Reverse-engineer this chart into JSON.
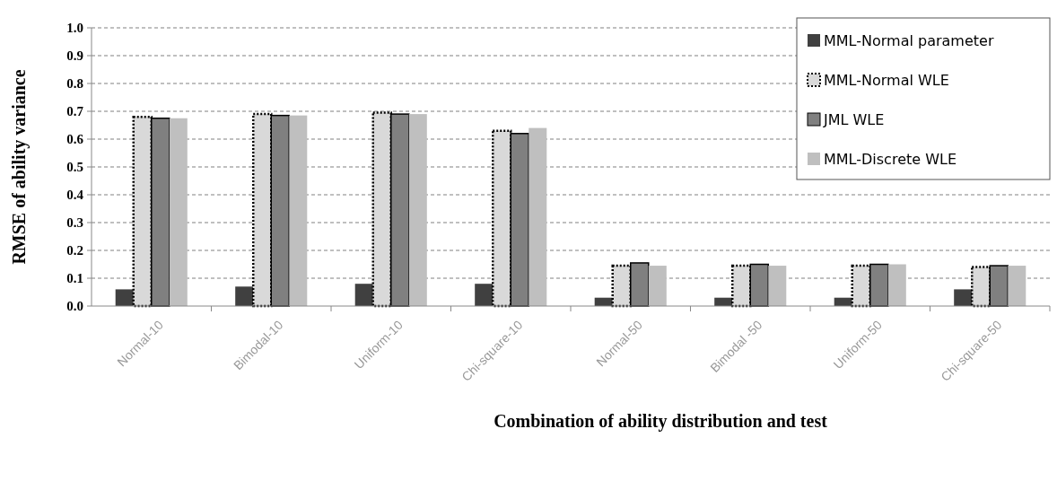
{
  "chart_data": {
    "type": "bar",
    "xlabel": "Combination of ability distribution and test",
    "ylabel": "RMSE of ability variance",
    "categories": [
      "Normal-10",
      "Bimodal-10",
      "Uniform-10",
      "Chi-square-10",
      "Normal-50",
      "Bimodal -50",
      "Uniform-50",
      "Chi-square-50"
    ],
    "series": [
      {
        "name": "MML-Normal parameter",
        "color": "#404040",
        "values": [
          0.06,
          0.07,
          0.08,
          0.08,
          0.03,
          0.03,
          0.03,
          0.06
        ]
      },
      {
        "name": "MML-Normal WLE",
        "color": "#d9d9d9",
        "line_style": "dotted",
        "values": [
          0.68,
          0.69,
          0.695,
          0.63,
          0.145,
          0.145,
          0.145,
          0.14
        ]
      },
      {
        "name": "JML WLE",
        "color": "#808080",
        "line_style": "solid",
        "values": [
          0.675,
          0.685,
          0.69,
          0.62,
          0.155,
          0.15,
          0.15,
          0.145
        ]
      },
      {
        "name": "MML-Discrete WLE",
        "color": "#bfbfbf",
        "values": [
          0.675,
          0.685,
          0.69,
          0.64,
          0.145,
          0.145,
          0.15,
          0.145
        ]
      }
    ],
    "ylim": [
      0,
      1
    ],
    "yticks": [
      {
        "value": 0,
        "label": "0.0"
      },
      {
        "value": 0.1,
        "label": "0.1"
      },
      {
        "value": 0.2,
        "label": "0.2"
      },
      {
        "value": 0.3,
        "label": "0.3"
      },
      {
        "value": 0.4,
        "label": "0.4"
      },
      {
        "value": 0.5,
        "label": "0.5"
      },
      {
        "value": 0.6,
        "label": "0.6"
      },
      {
        "value": 0.7,
        "label": "0.7"
      },
      {
        "value": 0.8,
        "label": "0.8"
      },
      {
        "value": 0.9,
        "label": "0.9"
      },
      {
        "value": 1,
        "label": "1.0"
      }
    ],
    "grid": "y",
    "legend": "top right"
  }
}
